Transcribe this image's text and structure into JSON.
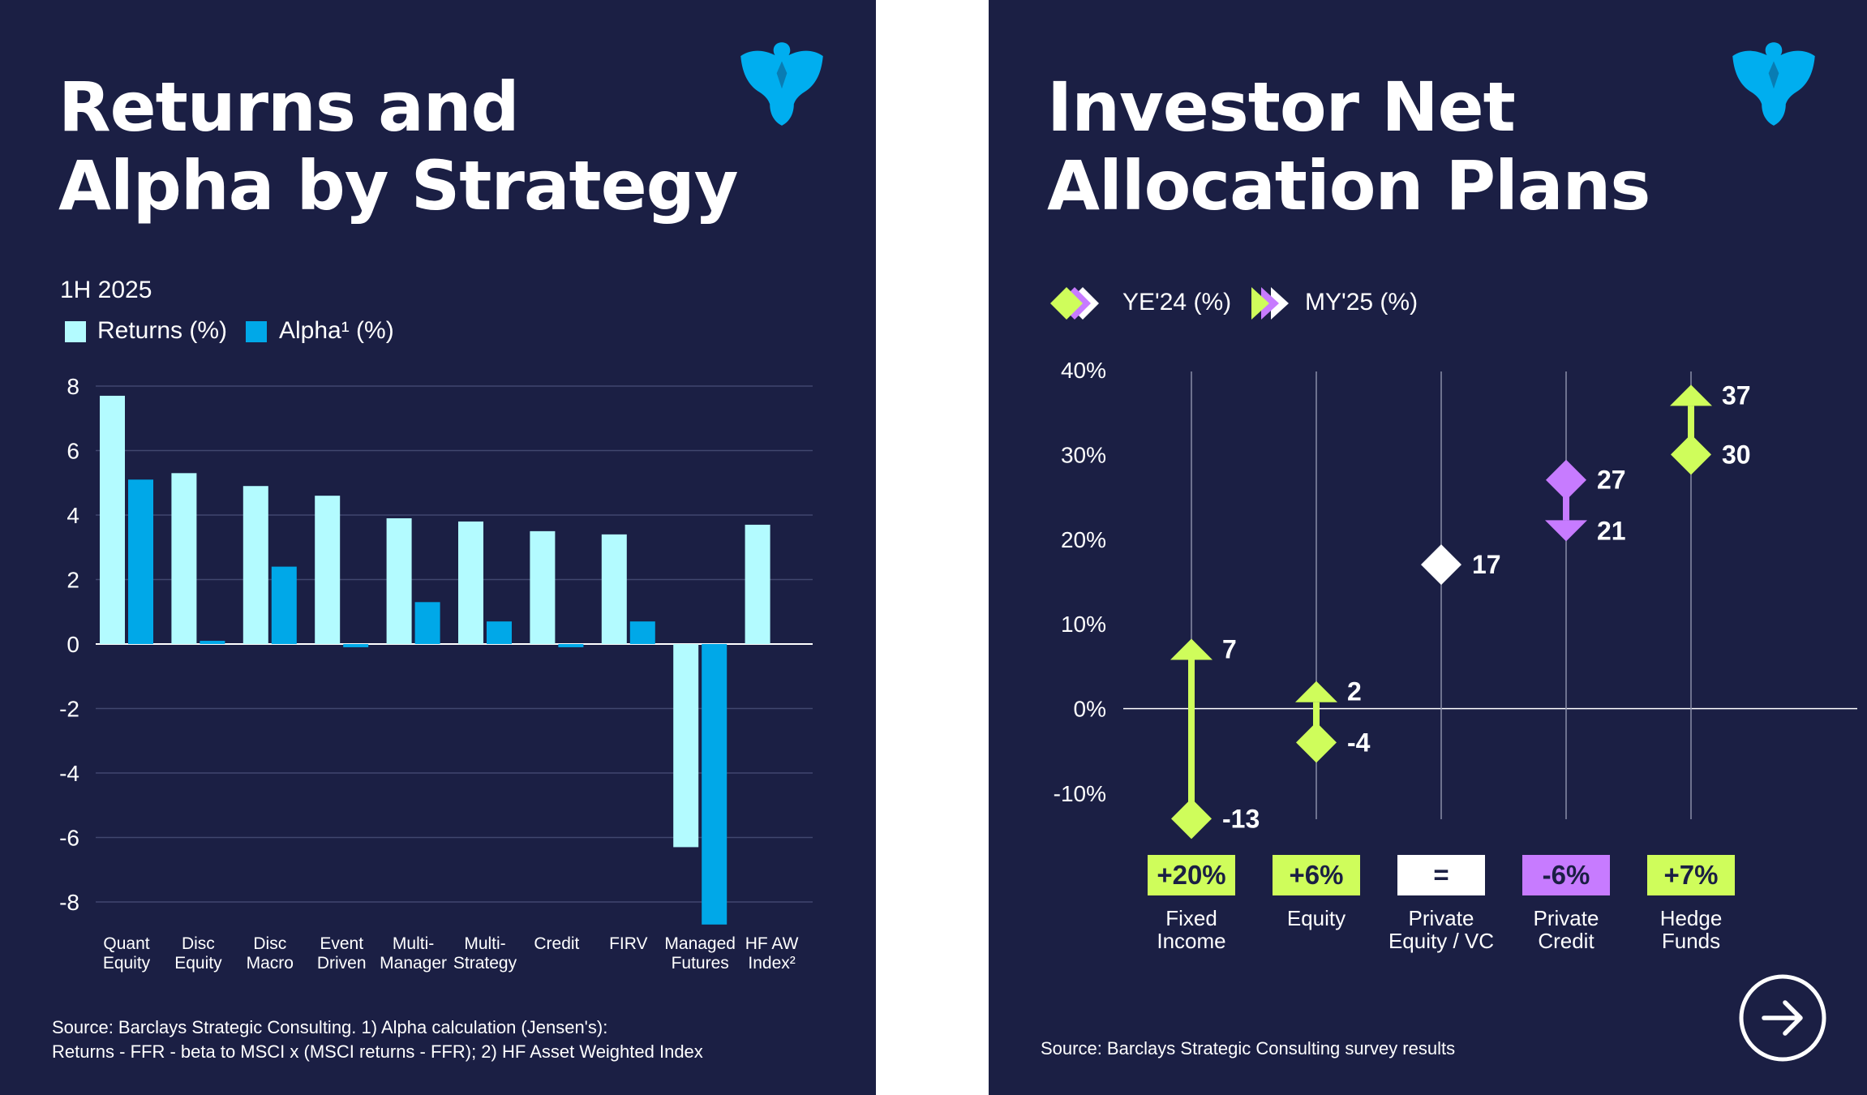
{
  "colors": {
    "background": "#1b1f44",
    "returns": "#b3fbff",
    "alpha": "#00a8e8",
    "lime": "#cffd5b",
    "violet": "#c77bff",
    "white": "#ffffff",
    "logo": "#00aeef"
  },
  "left": {
    "title_line1": "Returns and",
    "title_line2": "Alpha by Strategy",
    "logo_icon": "eagle-logo-icon",
    "period": "1H 2025",
    "legend": {
      "returns_label": "Returns (%)",
      "alpha_label": "Alpha¹ (%)"
    },
    "source_line1": "Source: Barclays Strategic Consulting. 1) Alpha calculation (Jensen's):",
    "source_line2": "Returns - FFR - beta to MSCI x (MSCI returns - FFR); 2) HF Asset Weighted Index"
  },
  "right": {
    "title_line1": "Investor Net",
    "title_line2": "Allocation Plans",
    "logo_icon": "eagle-logo-icon",
    "legend": {
      "ye_label": "YE'24 (%)",
      "my_label": "MY'25  (%)"
    },
    "source": "Source: Barclays Strategic Consulting survey results",
    "next_icon": "arrow-right-circle-icon"
  },
  "chart_data": [
    {
      "type": "bar",
      "title": "Returns and Alpha by Strategy",
      "subtitle": "1H 2025",
      "categories": [
        [
          "Quant",
          "Equity"
        ],
        [
          "Disc",
          "Equity"
        ],
        [
          "Disc",
          "Macro"
        ],
        [
          "Event",
          "Driven"
        ],
        [
          "Multi-",
          "Manager"
        ],
        [
          "Multi-",
          "Strategy"
        ],
        [
          "Credit"
        ],
        [
          "FIRV"
        ],
        [
          "Managed",
          "Futures"
        ],
        [
          "HF AW",
          "Index²"
        ]
      ],
      "series": [
        {
          "name": "Returns (%)",
          "values": [
            7.7,
            5.3,
            4.9,
            4.6,
            3.9,
            3.8,
            3.5,
            3.4,
            -6.3,
            3.7
          ]
        },
        {
          "name": "Alpha (%)",
          "values": [
            5.1,
            0.1,
            2.4,
            -0.1,
            1.3,
            0.7,
            -0.1,
            0.7,
            -8.7,
            null
          ]
        }
      ],
      "ylim": [
        -8,
        8
      ],
      "yticks": [
        "8",
        "6",
        "4",
        "2",
        "0",
        "-2",
        "-4",
        "-6",
        "-8"
      ],
      "grid": true,
      "legend": "top-left"
    },
    {
      "type": "scatter",
      "title": "Investor Net Allocation Plans",
      "ylim": [
        -10,
        40
      ],
      "yticks": [
        "40%",
        "30%",
        "20%",
        "10%",
        "0%",
        "-10%"
      ],
      "legend": "top-left",
      "series_names": [
        "YE'24 (%)",
        "MY'25 (%)"
      ],
      "categories": [
        {
          "label": [
            "Fixed",
            "Income"
          ],
          "ye24": -13,
          "my25": 7,
          "ye_label": "-13",
          "my_label": "7",
          "badge": "+20%",
          "color": "#cffd5b",
          "direction": "up"
        },
        {
          "label": [
            "Equity"
          ],
          "ye24": -4,
          "my25": 2,
          "ye_label": "-4",
          "my_label": "2",
          "badge": "+6%",
          "color": "#cffd5b",
          "direction": "up"
        },
        {
          "label": [
            "Private",
            "Equity / VC"
          ],
          "ye24": 17,
          "my25": 17,
          "ye_label": "17",
          "my_label": "",
          "badge": "=",
          "color": "#ffffff",
          "direction": "none"
        },
        {
          "label": [
            "Private",
            "Credit"
          ],
          "ye24": 27,
          "my25": 21,
          "ye_label": "27",
          "my_label": "21",
          "badge": "-6%",
          "color": "#c77bff",
          "direction": "down"
        },
        {
          "label": [
            "Hedge",
            "Funds"
          ],
          "ye24": 30,
          "my25": 37,
          "ye_label": "30",
          "my_label": "37",
          "badge": "+7%",
          "color": "#cffd5b",
          "direction": "up"
        }
      ]
    }
  ]
}
